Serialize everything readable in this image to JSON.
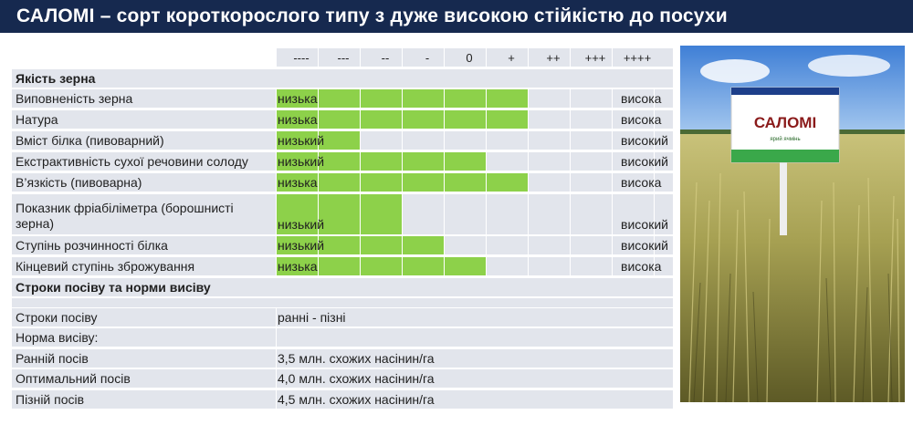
{
  "title": "САЛОМІ – сорт короткорослого типу з дуже високою стійкістю до посухи",
  "scale": [
    "----",
    "---",
    "--",
    "-",
    "0",
    "+",
    "++",
    "+++",
    "++++"
  ],
  "sections": {
    "grain_quality": "Якість зерна",
    "sowing": "Строки посіву та норми висіву"
  },
  "traits": [
    {
      "name": "Виповненість зерна",
      "low": "низька",
      "high": "висока",
      "level": 6
    },
    {
      "name": "Натура",
      "low": "низька",
      "high": "висока",
      "level": 6
    },
    {
      "name": "Вміст білка (пивоварний)",
      "low": "низький",
      "high": "високий",
      "level": 2
    },
    {
      "name": "Екстрактивність сухої речовини солоду",
      "low": "низький",
      "high": "високий",
      "level": 5
    },
    {
      "name": "В’язкість (пивоварна)",
      "low": "низька",
      "high": "висока",
      "level": 6
    },
    {
      "name": "Показник фріабіліметра (борошнисті зерна)",
      "low": "низький",
      "high": "високий",
      "level": 3
    },
    {
      "name": "Ступінь розчинності білка",
      "low": "низький",
      "high": "високий",
      "level": 4
    },
    {
      "name": "Кінцевий ступінь зброжування",
      "low": "низька",
      "high": "висока",
      "level": 5
    }
  ],
  "sowing_rows": [
    {
      "name": "Строки посіву",
      "value": "ранні - пізні"
    },
    {
      "name": "Норма висіву:",
      "value": ""
    },
    {
      "name": "Ранній посів",
      "value": "3,5 млн. схожих насінин/га"
    },
    {
      "name": "Оптимальний посів",
      "value": "4,0 млн. схожих насінин/га"
    },
    {
      "name": "Пізній посів",
      "value": "4,5 млн. схожих насінин/га"
    }
  ],
  "sign": {
    "name": "САЛОМІ",
    "subtitle": "ярий ячмінь"
  },
  "colors": {
    "header_bg": "#16294f",
    "cell_bg": "#e2e5ec",
    "bar_green": "#8dd14a"
  }
}
